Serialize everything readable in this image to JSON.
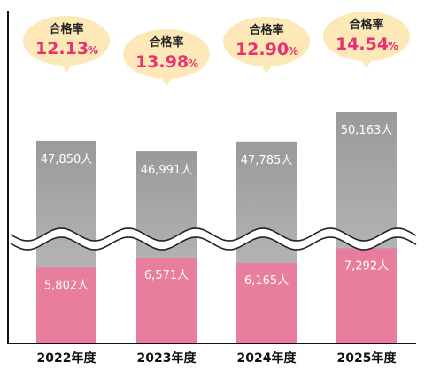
{
  "chart_data": {
    "type": "bar",
    "categories": [
      "2022年度",
      "2023年度",
      "2024年度",
      "2025年度"
    ],
    "series": [
      {
        "values": [
          47850,
          46991,
          47785,
          50163
        ]
      },
      {
        "values": [
          5802,
          6571,
          6165,
          7292
        ]
      }
    ],
    "applicant_labels": [
      "47,850人",
      "46,991人",
      "47,785人",
      "50,163人"
    ],
    "passer_labels": [
      "5,802人",
      "6,571人",
      "6,165人",
      "7,292人"
    ],
    "pass_rate_title": "合格率",
    "pass_rates": [
      "12.13",
      "13.98",
      "12.90",
      "14.54"
    ],
    "pass_rate_unit": "%",
    "axis_break": true,
    "colors": {
      "applicants_top": "#9a9a9a",
      "applicants_bottom": "#c4c4c4",
      "passers": "#e97d9d",
      "bubble": "#fde9b8",
      "rate_text": "#e8316e"
    }
  }
}
